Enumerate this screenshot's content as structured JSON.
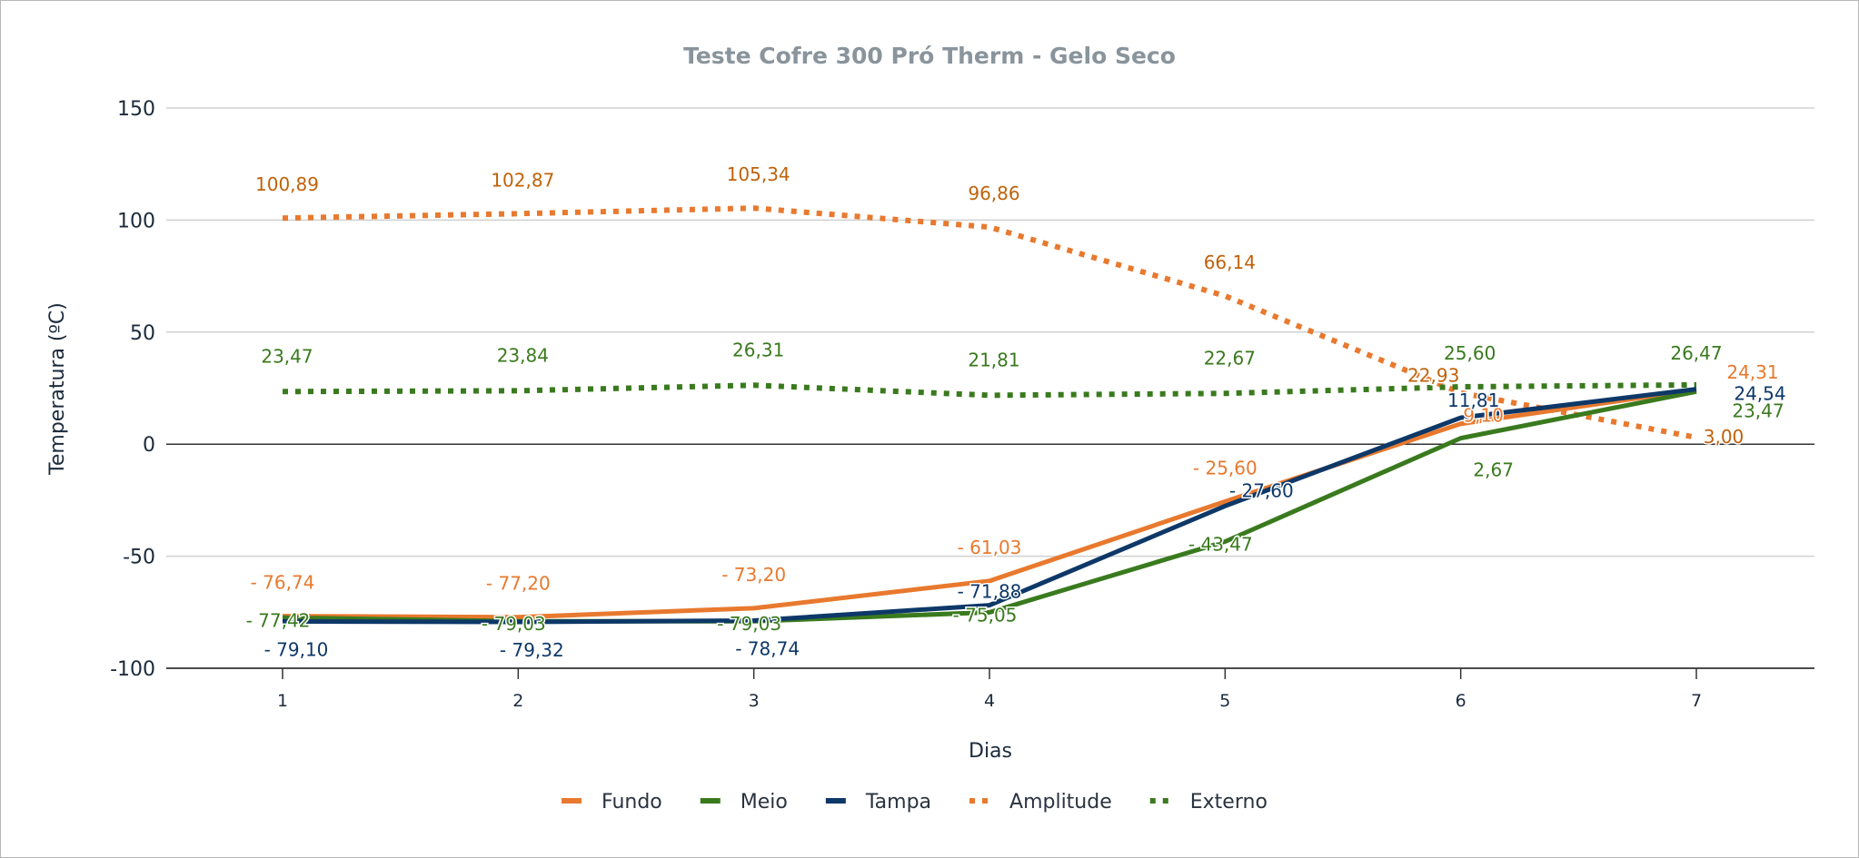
{
  "chart_data": {
    "type": "line",
    "title": "Teste Cofre 300 Pró Therm - Gelo Seco",
    "xlabel": "Dias",
    "ylabel": "Temperatura (ºC)",
    "categories": [
      "1",
      "2",
      "3",
      "4",
      "5",
      "6",
      "7"
    ],
    "ylim": [
      -100,
      150
    ],
    "yticks": [
      "150",
      "100",
      "50",
      "0",
      "-50",
      "-100"
    ],
    "ytick_values": [
      150,
      100,
      50,
      0,
      -50,
      -100
    ],
    "grid": true,
    "legend_placement": "bottom",
    "series": [
      {
        "name": "Fundo",
        "style": "solid",
        "color": "#e8792e",
        "label_color": "#e8792e",
        "values": [
          -76.74,
          -77.2,
          -73.2,
          -61.03,
          -25.6,
          9.1,
          24.31
        ],
        "labels": [
          "- 76,74",
          "- 77,20",
          "- 73,20",
          "- 61,03",
          "- 25,60",
          "9,10",
          "24,31"
        ]
      },
      {
        "name": "Meio",
        "style": "solid",
        "color": "#3a7a1e",
        "label_color": "#3a7a1e",
        "values": [
          -77.42,
          -79.03,
          -79.03,
          -75.05,
          -43.47,
          2.67,
          23.47
        ],
        "labels": [
          "- 77,42",
          "- 79,03",
          "- 79,03",
          "- 75,05",
          "- 43,47",
          "2,67",
          "23,47"
        ]
      },
      {
        "name": "Tampa",
        "style": "solid",
        "color": "#0d3868",
        "label_color": "#0d3868",
        "values": [
          -79.1,
          -79.32,
          -78.74,
          -71.88,
          -27.6,
          11.81,
          24.54
        ],
        "labels": [
          "- 79,10",
          "- 79,32",
          "- 78,74",
          "- 71,88",
          "- 27,60",
          "11,81",
          "24,54"
        ]
      },
      {
        "name": "Amplitude",
        "style": "dotted",
        "color": "#e8792e",
        "label_color": "#c0620a",
        "values": [
          100.89,
          102.87,
          105.34,
          96.86,
          66.14,
          22.93,
          3.0
        ],
        "labels": [
          "100,89",
          "102,87",
          "105,34",
          "96,86",
          "66,14",
          "22,93",
          "3,00"
        ]
      },
      {
        "name": "Externo",
        "style": "dotted",
        "color": "#3a7a1e",
        "label_color": "#3a7a1e",
        "values": [
          23.47,
          23.84,
          26.31,
          21.81,
          22.67,
          25.6,
          26.47
        ],
        "labels": [
          "23,47",
          "23,84",
          "26,31",
          "21,81",
          "22,67",
          "25,60",
          "26,47"
        ]
      }
    ]
  }
}
